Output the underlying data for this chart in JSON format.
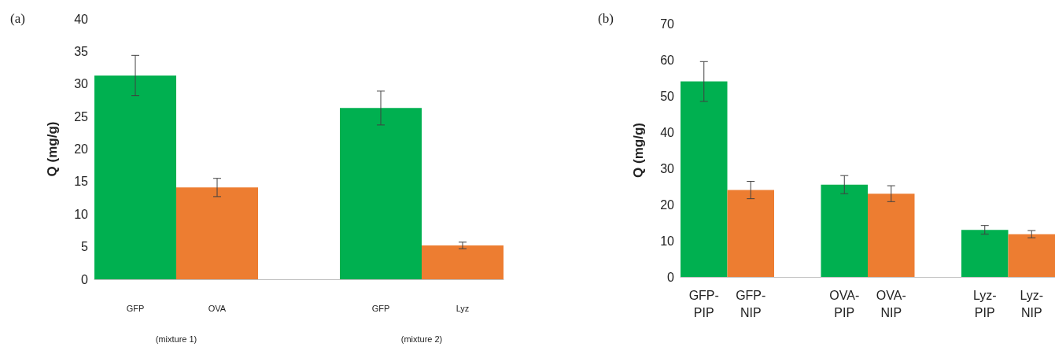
{
  "chart_data": [
    {
      "type": "bar",
      "title": "(a)",
      "ylabel": "Q (mg/g)",
      "categories": [
        "GFP",
        "OVA",
        null,
        "GFP",
        "Lyz"
      ],
      "values": [
        31.3,
        14.1,
        null,
        26.3,
        5.2
      ],
      "colors": [
        "#00b050",
        "#ed7d31",
        null,
        "#00b050",
        "#ed7d31"
      ],
      "errors": [
        3.1,
        1.4,
        null,
        2.6,
        0.5
      ],
      "ylim": [
        0,
        40
      ],
      "yticks": [
        0,
        5,
        10,
        15,
        20,
        25,
        30,
        35,
        40
      ],
      "annotations": [
        "(mixture 1)",
        "(mixture 2)"
      ]
    },
    {
      "type": "bar",
      "title": "(b)",
      "ylabel": "Q (mg/g)",
      "categories": [
        "GFP-PIP",
        "GFP-NIP",
        null,
        "OVA-PIP",
        "OVA-NIP",
        null,
        "Lyz-PIP",
        "Lyz-NIP"
      ],
      "values": [
        54,
        24,
        null,
        25.5,
        23,
        null,
        13,
        11.8
      ],
      "colors": [
        "#00b050",
        "#ed7d31",
        null,
        "#00b050",
        "#ed7d31",
        null,
        "#00b050",
        "#ed7d31"
      ],
      "errors": [
        5.5,
        2.4,
        null,
        2.5,
        2.2,
        null,
        1.2,
        1
      ],
      "ylim": [
        0,
        70
      ],
      "yticks": [
        0,
        10,
        20,
        30,
        40,
        50,
        60,
        70
      ]
    }
  ]
}
